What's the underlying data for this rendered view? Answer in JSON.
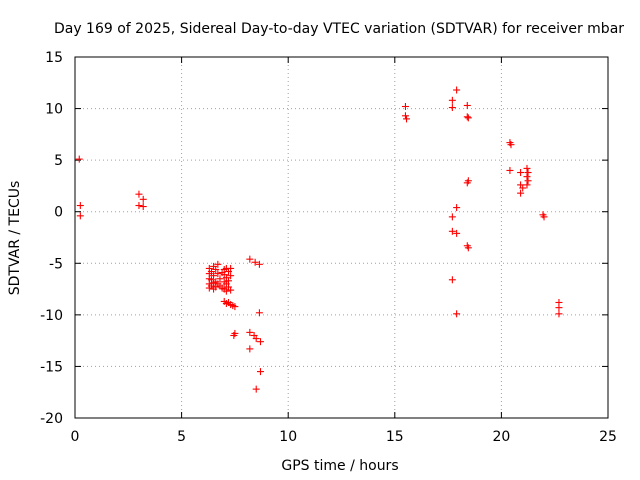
{
  "chart_data": {
    "type": "scatter",
    "title": "Day 169 of 2025, Sidereal Day-to-day VTEC variation (SDTVAR) for receiver mbar",
    "xlabel": "GPS time / hours",
    "ylabel": "SDTVAR / TECUs",
    "xlim": [
      0,
      25
    ],
    "ylim": [
      -20,
      15
    ],
    "xticks": [
      0,
      5,
      10,
      15,
      20,
      25
    ],
    "yticks": [
      -20,
      -15,
      -10,
      -5,
      0,
      5,
      10,
      15
    ],
    "xtick_labels": [
      "0",
      "5",
      "10",
      "15",
      "20",
      "25"
    ],
    "ytick_labels": [
      "-20",
      "-15",
      "-10",
      "-5",
      "0",
      "5",
      "10",
      "15"
    ],
    "grid": true,
    "marker": "+",
    "color": "#ff0000",
    "series": [
      {
        "name": "mbar",
        "points": [
          [
            0.2,
            5.1
          ],
          [
            0.25,
            0.6
          ],
          [
            0.25,
            -0.4
          ],
          [
            3.0,
            1.7
          ],
          [
            3.0,
            0.6
          ],
          [
            3.2,
            1.2
          ],
          [
            3.2,
            0.5
          ],
          [
            6.3,
            -5.5
          ],
          [
            6.3,
            -6.0
          ],
          [
            6.3,
            -6.5
          ],
          [
            6.3,
            -7.0
          ],
          [
            6.3,
            -7.4
          ],
          [
            6.4,
            -5.8
          ],
          [
            6.4,
            -6.6
          ],
          [
            6.4,
            -7.2
          ],
          [
            6.5,
            -5.3
          ],
          [
            6.5,
            -6.2
          ],
          [
            6.5,
            -6.9
          ],
          [
            6.5,
            -7.5
          ],
          [
            6.6,
            -5.6
          ],
          [
            6.6,
            -6.8
          ],
          [
            6.6,
            -7.3
          ],
          [
            6.7,
            -5.1
          ],
          [
            6.7,
            -6.0
          ],
          [
            6.7,
            -7.0
          ],
          [
            6.8,
            -6.5
          ],
          [
            6.8,
            -7.2
          ],
          [
            6.9,
            -5.9
          ],
          [
            6.9,
            -7.4
          ],
          [
            7.0,
            -5.6
          ],
          [
            7.0,
            -6.1
          ],
          [
            7.0,
            -6.8
          ],
          [
            7.0,
            -7.5
          ],
          [
            7.0,
            -8.7
          ],
          [
            7.1,
            -5.5
          ],
          [
            7.1,
            -6.4
          ],
          [
            7.1,
            -7.0
          ],
          [
            7.1,
            -7.7
          ],
          [
            7.1,
            -8.9
          ],
          [
            7.2,
            -5.8
          ],
          [
            7.2,
            -6.7
          ],
          [
            7.2,
            -7.3
          ],
          [
            7.2,
            -8.8
          ],
          [
            7.3,
            -5.5
          ],
          [
            7.3,
            -6.2
          ],
          [
            7.3,
            -7.6
          ],
          [
            7.3,
            -9.0
          ],
          [
            7.4,
            -9.1
          ],
          [
            7.5,
            -9.2
          ],
          [
            7.5,
            -11.8
          ],
          [
            7.45,
            -12.0
          ],
          [
            8.2,
            -4.6
          ],
          [
            8.2,
            -11.7
          ],
          [
            8.2,
            -13.3
          ],
          [
            8.4,
            -12.0
          ],
          [
            8.45,
            -4.9
          ],
          [
            8.5,
            -12.3
          ],
          [
            8.5,
            -17.2
          ],
          [
            8.65,
            -5.1
          ],
          [
            8.65,
            -9.8
          ],
          [
            8.7,
            -12.6
          ],
          [
            8.7,
            -15.5
          ],
          [
            15.5,
            10.2
          ],
          [
            15.5,
            9.3
          ],
          [
            15.55,
            9.0
          ],
          [
            17.7,
            10.8
          ],
          [
            17.7,
            10.1
          ],
          [
            17.7,
            -0.5
          ],
          [
            17.7,
            -1.9
          ],
          [
            17.7,
            -6.6
          ],
          [
            17.9,
            11.8
          ],
          [
            17.9,
            0.4
          ],
          [
            17.9,
            -2.1
          ],
          [
            17.9,
            -9.9
          ],
          [
            18.4,
            10.3
          ],
          [
            18.4,
            9.2
          ],
          [
            18.45,
            9.1
          ],
          [
            18.4,
            2.8
          ],
          [
            18.45,
            3.0
          ],
          [
            18.4,
            -3.3
          ],
          [
            18.45,
            -3.5
          ],
          [
            20.4,
            6.7
          ],
          [
            20.45,
            6.5
          ],
          [
            20.4,
            4.0
          ],
          [
            20.9,
            3.8
          ],
          [
            20.9,
            2.6
          ],
          [
            20.9,
            1.8
          ],
          [
            21.0,
            2.3
          ],
          [
            21.2,
            4.2
          ],
          [
            21.2,
            3.4
          ],
          [
            21.2,
            2.6
          ],
          [
            21.25,
            3.8
          ],
          [
            21.25,
            3.0
          ],
          [
            21.95,
            -0.3
          ],
          [
            22.0,
            -0.5
          ],
          [
            22.7,
            -8.8
          ],
          [
            22.7,
            -9.3
          ],
          [
            22.7,
            -9.9
          ]
        ]
      }
    ]
  }
}
